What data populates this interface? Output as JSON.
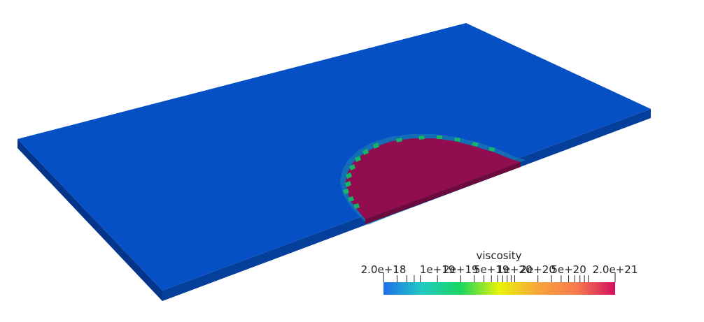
{
  "colorbar": {
    "title": "viscosity",
    "min_label": "2.0e+18",
    "max_label": "2.0e+21",
    "range": [
      2e+18,
      2e+21
    ],
    "scale": "log",
    "colors": [
      "#1f6fe8",
      "#21c9c3",
      "#19d65f",
      "#e9f20a",
      "#f7a53a",
      "#f77a4e",
      "#d1105e"
    ],
    "ticks": [
      {
        "value": 3e+18
      },
      {
        "value": 4e+18
      },
      {
        "value": 5e+18
      },
      {
        "value": 6e+18
      },
      {
        "value": 1e+19,
        "label": "1e+19"
      },
      {
        "value": 2e+19,
        "label": "2e+19"
      },
      {
        "value": 3e+19
      },
      {
        "value": 4e+19
      },
      {
        "value": 5e+19,
        "label": "5e+19"
      },
      {
        "value": 6e+19
      },
      {
        "value": 7e+19
      },
      {
        "value": 8e+19
      },
      {
        "value": 9e+19
      },
      {
        "value": 1e+20,
        "label": "1e+20"
      },
      {
        "value": 2e+20,
        "label": "2e+20"
      },
      {
        "value": 3e+20
      },
      {
        "value": 4e+20
      },
      {
        "value": 5e+20,
        "label": "5e+20"
      },
      {
        "value": 6e+20
      },
      {
        "value": 7e+20
      },
      {
        "value": 8e+20
      },
      {
        "value": 9e+20
      }
    ]
  },
  "colors": {
    "plate_top": "#0650c5",
    "plate_side_front": "#053f9c",
    "plate_side_left": "#04358a",
    "inclusion_top": "#910d4f",
    "inclusion_side": "#6b0a3b",
    "transition_green": "#16b36a",
    "transition_teal": "#1f86a9"
  }
}
